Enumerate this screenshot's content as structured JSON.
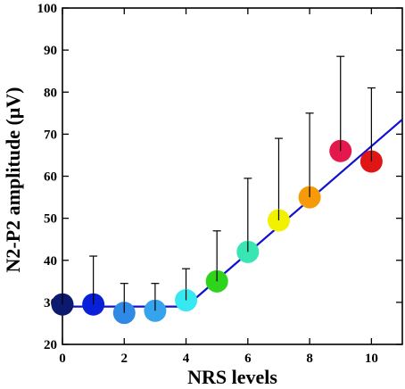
{
  "chart_data": {
    "type": "scatter",
    "title": "",
    "xlabel": "NRS levels",
    "ylabel": "N2-P2 amplitude (μV)",
    "xlim": [
      0,
      11
    ],
    "ylim": [
      20,
      100
    ],
    "x_ticks": [
      "0",
      "2",
      "4",
      "6",
      "8",
      "10"
    ],
    "y_ticks": [
      "20",
      "30",
      "40",
      "50",
      "60",
      "70",
      "80",
      "90",
      "100"
    ],
    "grid": false,
    "legend": "none",
    "series": [
      {
        "x": [
          0,
          1,
          2,
          3,
          4,
          5,
          6,
          7,
          8,
          9,
          10
        ],
        "values": [
          29.5,
          29.5,
          27.5,
          28,
          30.5,
          35,
          42,
          49.5,
          55,
          66,
          63.5
        ],
        "error_upper": [
          29.5,
          41,
          34.5,
          34.5,
          38,
          47,
          59.5,
          69,
          75,
          88.5,
          81
        ],
        "colors": [
          "#0b1a6e",
          "#0a1fd8",
          "#2f8ae6",
          "#36a4ec",
          "#36e8f0",
          "#2ed41c",
          "#38e6b4",
          "#f2f200",
          "#f79a0a",
          "#e4184c",
          "#e01515"
        ]
      }
    ],
    "fit_line": {
      "color": "#1010d0",
      "points": [
        [
          0,
          29
        ],
        [
          4,
          29
        ],
        [
          11,
          73.5
        ]
      ]
    },
    "axis_color": "#000000"
  }
}
